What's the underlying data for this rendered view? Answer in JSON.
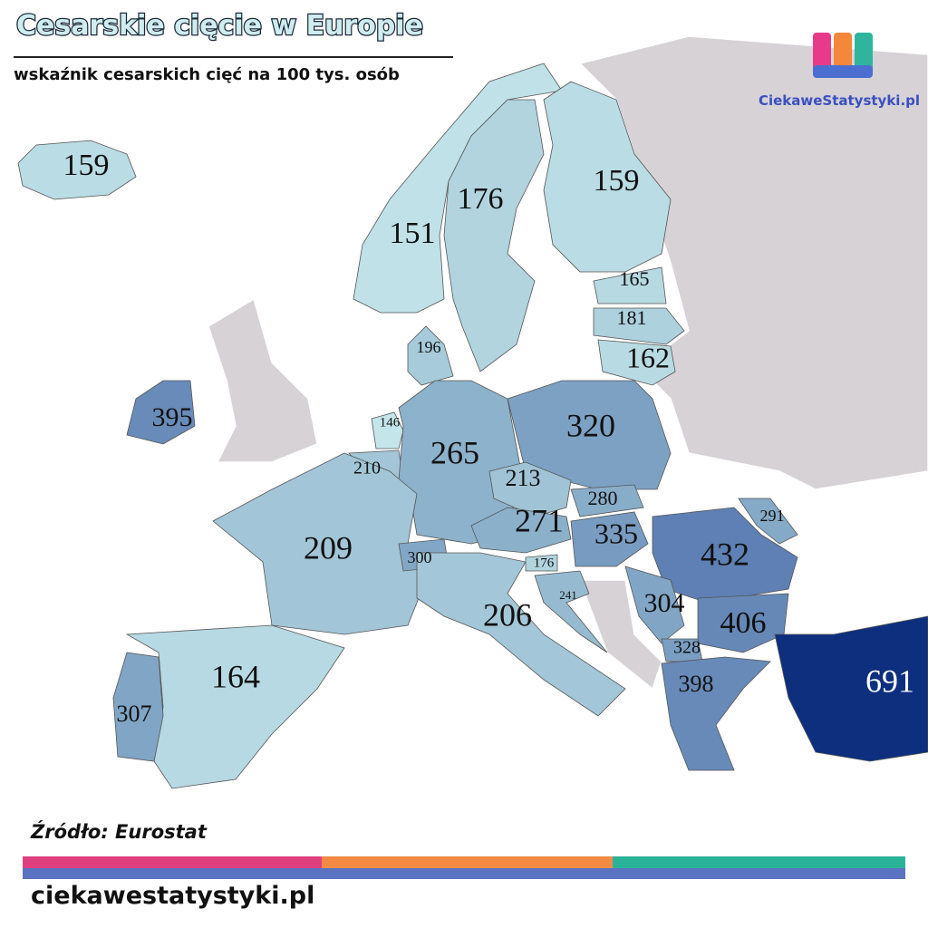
{
  "header": {
    "title": "Cesarskie cięcie w Europie",
    "subtitle": "wskaźnik cesarskich cięć na 100 tys. osób",
    "logo": "CiekaweStatystyki.pl"
  },
  "map": {
    "regions": [
      {
        "value": 159
      },
      {
        "value": 151
      },
      {
        "value": 176
      },
      {
        "value": 159
      },
      {
        "value": 165
      },
      {
        "value": 181
      },
      {
        "value": 162
      },
      {
        "value": 196
      },
      {
        "value": 395
      },
      {
        "value": 146
      },
      {
        "value": 210
      },
      {
        "value": 265
      },
      {
        "value": 320
      },
      {
        "value": 213
      },
      {
        "value": 280
      },
      {
        "value": 271
      },
      {
        "value": 335
      },
      {
        "value": 291
      },
      {
        "value": 432
      },
      {
        "value": 209
      },
      {
        "value": 300
      },
      {
        "value": 176
      },
      {
        "value": 241
      },
      {
        "value": 206
      },
      {
        "value": 304
      },
      {
        "value": 406
      },
      {
        "value": 328
      },
      {
        "value": 398
      },
      {
        "value": 691
      },
      {
        "value": 164
      },
      {
        "value": 307
      }
    ]
  },
  "footer": {
    "source": "Źródło: Eurostat",
    "url": "ciekawestatystyki.pl"
  }
}
